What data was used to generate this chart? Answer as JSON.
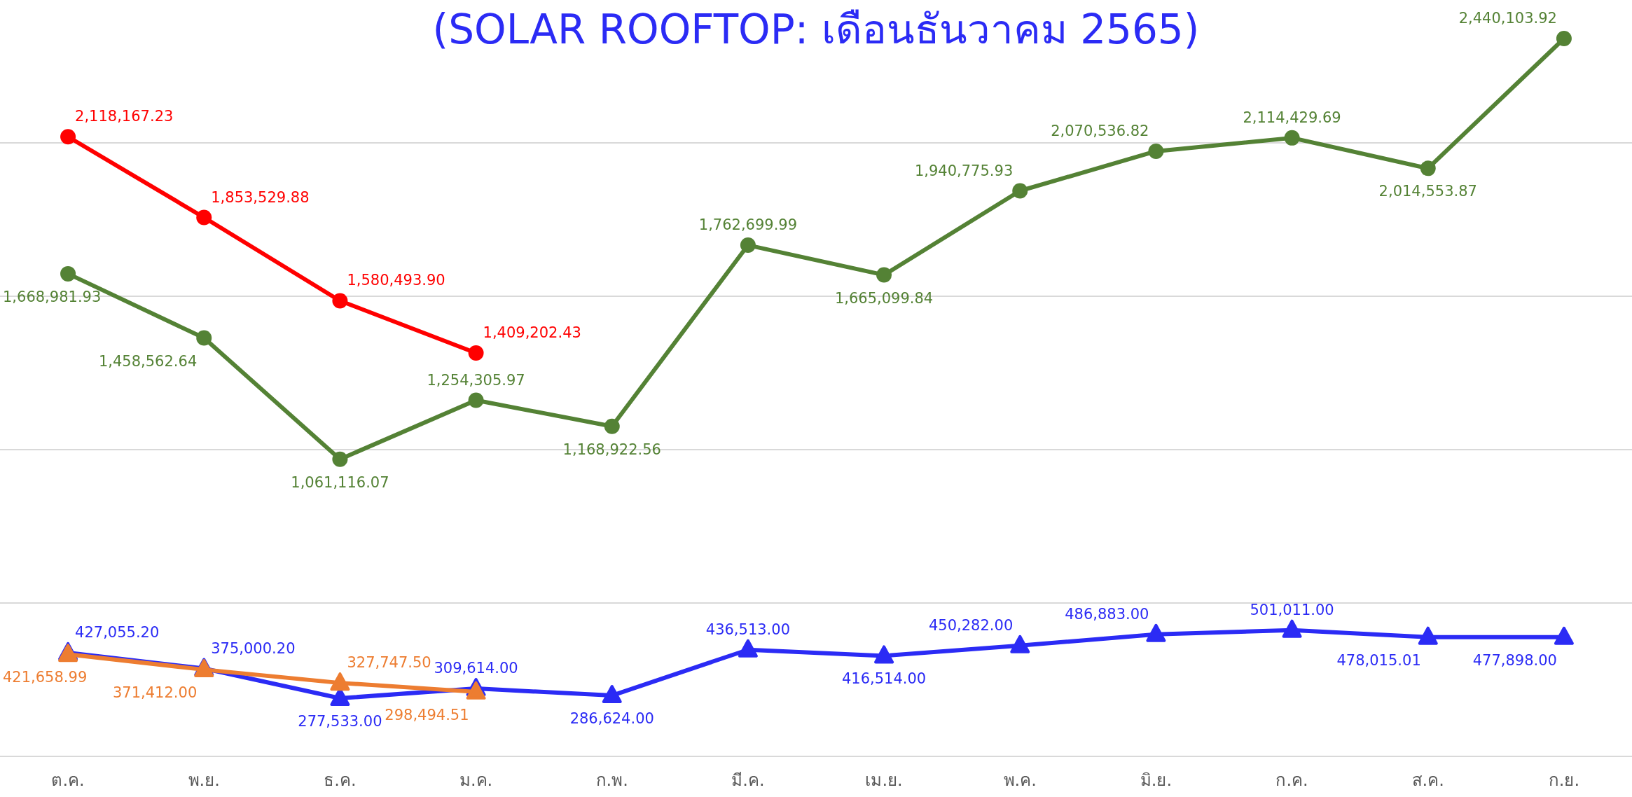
{
  "chart_data": {
    "type": "line",
    "title": "(SOLAR ROOFTOP: เดือนธันวาคม 2565)",
    "categories": [
      "ต.ค.",
      "พ.ย.",
      "ธ.ค.",
      "ม.ค.",
      "ก.พ.",
      "มี.ค.",
      "เม.ย.",
      "พ.ค.",
      "มิ.ย.",
      "ก.ค.",
      "ส.ค.",
      "ก.ย."
    ],
    "series": [
      {
        "color": "#548235",
        "marker": "circle",
        "values": [
          1668981.93,
          1458562.64,
          1061116.07,
          1254305.97,
          1168922.56,
          1762699.99,
          1665099.84,
          1940775.93,
          2070536.82,
          2114429.69,
          2014553.87,
          2440103.92
        ],
        "value_labels": [
          "1,668,981.93",
          "1,458,562.64",
          "1,061,116.07",
          "1,254,305.97",
          "1,168,922.56",
          "1,762,699.99",
          "1,665,099.84",
          "1,940,775.93",
          "2,070,536.82",
          "2,114,429.69",
          "2,014,553.87",
          "2,440,103.92"
        ]
      },
      {
        "color": "#ff0000",
        "marker": "circle",
        "values": [
          2118167.23,
          1853529.88,
          1580493.9,
          1409202.43,
          null,
          null,
          null,
          null,
          null,
          null,
          null,
          null
        ],
        "value_labels": [
          "2,118,167.23",
          "1,853,529.88",
          "1,580,493.90",
          "1,409,202.43",
          null,
          null,
          null,
          null,
          null,
          null,
          null,
          null
        ]
      },
      {
        "color": "#2b2bf5",
        "marker": "triangle",
        "values": [
          427055.2,
          375000.2,
          277533.0,
          309614.0,
          286624.0,
          436513.0,
          416514.0,
          450282.0,
          486883.0,
          501011.0,
          478015.01,
          477898.0
        ],
        "value_labels": [
          "427,055.20",
          "375,000.20",
          "277,533.00",
          "309,614.00",
          "286,624.00",
          "436,513.00",
          "416,514.00",
          "450,282.00",
          "486,883.00",
          "501,011.00",
          "478,015.01",
          "477,898.00"
        ]
      },
      {
        "color": "#ed7d31",
        "marker": "triangle",
        "values": [
          421658.99,
          371412.0,
          327747.5,
          298494.51,
          null,
          null,
          null,
          null,
          null,
          null,
          null,
          null
        ],
        "value_labels": [
          "421,658.99",
          "371,412.00",
          "327,747.50",
          "298,494.51",
          null,
          null,
          null,
          null,
          null,
          null,
          null,
          null
        ]
      }
    ],
    "grid": "y",
    "line_style": "solid"
  }
}
